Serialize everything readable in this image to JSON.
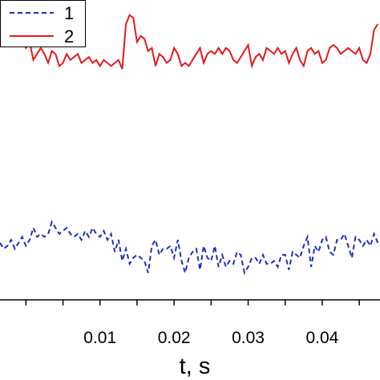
{
  "chart_data": {
    "type": "line",
    "title": "",
    "xlabel": "t, s",
    "ylabel": "",
    "xlim": [
      -0.0035,
      0.0478
    ],
    "ylim": [
      0,
      1
    ],
    "x_ticks": [
      {
        "value": 0.0,
        "label": ""
      },
      {
        "value": 0.005,
        "label": ""
      },
      {
        "value": 0.01,
        "label": "0.01"
      },
      {
        "value": 0.015,
        "label": ""
      },
      {
        "value": 0.02,
        "label": "0.02"
      },
      {
        "value": 0.025,
        "label": ""
      },
      {
        "value": 0.03,
        "label": "0.03"
      },
      {
        "value": 0.035,
        "label": ""
      },
      {
        "value": 0.04,
        "label": "0.04"
      },
      {
        "value": 0.045,
        "label": ""
      }
    ],
    "grid": false,
    "legend_position": "top-left",
    "series": [
      {
        "name": "1",
        "color": "#1f2fbf",
        "dash": true,
        "x": [
          -0.0035,
          -0.003,
          -0.0025,
          -0.002,
          -0.0015,
          -0.001,
          -0.0005,
          0.0,
          0.0005,
          0.001,
          0.0015,
          0.002,
          0.0025,
          0.003,
          0.0035,
          0.004,
          0.0045,
          0.005,
          0.0055,
          0.006,
          0.0065,
          0.007,
          0.0075,
          0.008,
          0.0085,
          0.009,
          0.0095,
          0.01,
          0.0105,
          0.011,
          0.0115,
          0.012,
          0.0125,
          0.013,
          0.0135,
          0.014,
          0.0145,
          0.015,
          0.0155,
          0.016,
          0.0165,
          0.017,
          0.0175,
          0.018,
          0.0185,
          0.019,
          0.0195,
          0.02,
          0.0205,
          0.021,
          0.0215,
          0.022,
          0.0225,
          0.023,
          0.0235,
          0.024,
          0.0245,
          0.025,
          0.0255,
          0.026,
          0.0265,
          0.027,
          0.0275,
          0.028,
          0.0285,
          0.029,
          0.0295,
          0.03,
          0.0305,
          0.031,
          0.0315,
          0.032,
          0.0325,
          0.033,
          0.0335,
          0.034,
          0.0345,
          0.035,
          0.0355,
          0.036,
          0.0365,
          0.037,
          0.0375,
          0.038,
          0.0385,
          0.039,
          0.0395,
          0.04,
          0.0405,
          0.041,
          0.0415,
          0.042,
          0.0425,
          0.043,
          0.0435,
          0.044,
          0.0445,
          0.045,
          0.0455,
          0.046,
          0.0465,
          0.047,
          0.0475
        ],
        "y": [
          0.19,
          0.17,
          0.18,
          0.2,
          0.17,
          0.19,
          0.21,
          0.18,
          0.2,
          0.24,
          0.21,
          0.22,
          0.21,
          0.22,
          0.26,
          0.24,
          0.22,
          0.23,
          0.24,
          0.22,
          0.21,
          0.22,
          0.2,
          0.23,
          0.21,
          0.24,
          0.22,
          0.21,
          0.23,
          0.2,
          0.22,
          0.16,
          0.2,
          0.13,
          0.17,
          0.12,
          0.14,
          0.15,
          0.14,
          0.13,
          0.09,
          0.18,
          0.2,
          0.15,
          0.17,
          0.17,
          0.18,
          0.14,
          0.2,
          0.13,
          0.09,
          0.14,
          0.16,
          0.17,
          0.1,
          0.18,
          0.14,
          0.13,
          0.18,
          0.11,
          0.15,
          0.11,
          0.13,
          0.12,
          0.16,
          0.15,
          0.09,
          0.11,
          0.14,
          0.14,
          0.12,
          0.15,
          0.12,
          0.12,
          0.13,
          0.11,
          0.15,
          0.15,
          0.1,
          0.16,
          0.15,
          0.14,
          0.18,
          0.21,
          0.11,
          0.18,
          0.16,
          0.2,
          0.21,
          0.16,
          0.15,
          0.2,
          0.2,
          0.22,
          0.18,
          0.14,
          0.21,
          0.2,
          0.18,
          0.2,
          0.18,
          0.22,
          0.19
        ]
      },
      {
        "name": "2",
        "color": "#e41a1c",
        "dash": false,
        "x": [
          -0.0035,
          -0.003,
          -0.0025,
          -0.002,
          -0.0015,
          -0.001,
          -0.0005,
          0.0,
          0.0005,
          0.001,
          0.0015,
          0.002,
          0.0025,
          0.003,
          0.0035,
          0.004,
          0.0045,
          0.005,
          0.0055,
          0.006,
          0.0065,
          0.007,
          0.0075,
          0.008,
          0.0085,
          0.009,
          0.0095,
          0.01,
          0.0105,
          0.011,
          0.0115,
          0.012,
          0.0125,
          0.013,
          0.0135,
          0.014,
          0.0145,
          0.015,
          0.0155,
          0.016,
          0.0165,
          0.017,
          0.0175,
          0.018,
          0.0185,
          0.019,
          0.0195,
          0.02,
          0.0205,
          0.021,
          0.0215,
          0.022,
          0.0225,
          0.023,
          0.0235,
          0.024,
          0.0245,
          0.025,
          0.0255,
          0.026,
          0.0265,
          0.027,
          0.0275,
          0.028,
          0.0285,
          0.029,
          0.0295,
          0.03,
          0.0305,
          0.031,
          0.0315,
          0.032,
          0.0325,
          0.033,
          0.0335,
          0.034,
          0.0345,
          0.035,
          0.0355,
          0.036,
          0.0365,
          0.037,
          0.0375,
          0.038,
          0.0385,
          0.039,
          0.0395,
          0.04,
          0.0405,
          0.041,
          0.0415,
          0.042,
          0.0425,
          0.043,
          0.0435,
          0.044,
          0.0445,
          0.045,
          0.0455,
          0.046,
          0.0465,
          0.047,
          0.0475
        ],
        "y": [
          0.93,
          0.94,
          0.92,
          0.85,
          0.86,
          0.88,
          0.87,
          0.84,
          0.86,
          0.8,
          0.82,
          0.84,
          0.82,
          0.79,
          0.83,
          0.82,
          0.78,
          0.79,
          0.82,
          0.8,
          0.81,
          0.82,
          0.79,
          0.8,
          0.81,
          0.79,
          0.8,
          0.78,
          0.8,
          0.79,
          0.78,
          0.79,
          0.8,
          0.77,
          0.92,
          0.95,
          0.94,
          0.86,
          0.88,
          0.87,
          0.83,
          0.84,
          0.78,
          0.82,
          0.81,
          0.79,
          0.8,
          0.84,
          0.82,
          0.78,
          0.79,
          0.78,
          0.8,
          0.82,
          0.84,
          0.79,
          0.82,
          0.83,
          0.82,
          0.84,
          0.82,
          0.84,
          0.83,
          0.8,
          0.79,
          0.81,
          0.83,
          0.85,
          0.78,
          0.81,
          0.82,
          0.8,
          0.84,
          0.83,
          0.82,
          0.84,
          0.82,
          0.83,
          0.79,
          0.82,
          0.84,
          0.8,
          0.78,
          0.83,
          0.84,
          0.82,
          0.83,
          0.79,
          0.8,
          0.84,
          0.85,
          0.84,
          0.82,
          0.83,
          0.84,
          0.83,
          0.82,
          0.84,
          0.8,
          0.79,
          0.82,
          0.9,
          0.92
        ]
      }
    ]
  }
}
